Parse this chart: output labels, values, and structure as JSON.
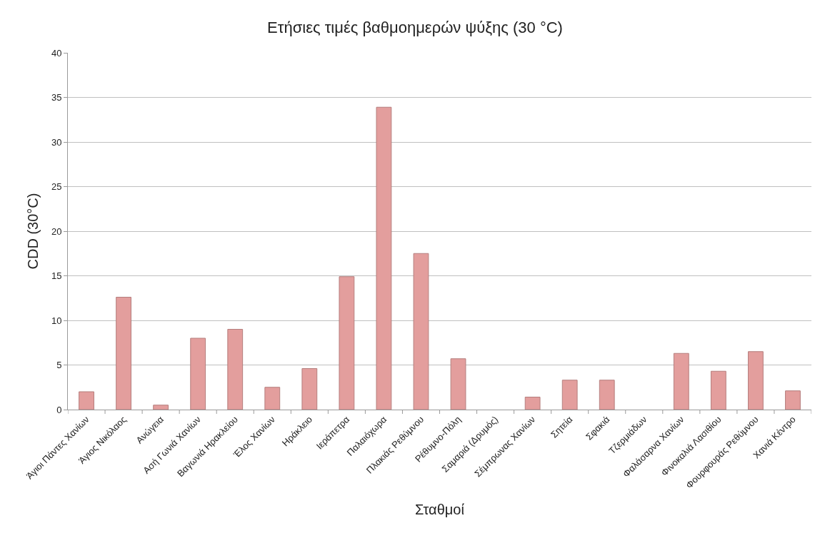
{
  "chart_data": {
    "type": "bar",
    "title": "Ετήσιες τιμές βαθμοημερών ψύξης (30 °C)",
    "xlabel": "Σταθμοί",
    "ylabel": "CDD (30°C)",
    "categories": [
      "Άγιοι Πάντες Χανίων",
      "Άγιος Νικόλαος",
      "Ανώγεια",
      "Ασή Γωνιά Χανίων",
      "Βαγωνιά Ηρακλείου",
      "Έλος Χανίων",
      "Ηράκλειο",
      "Ιεράπετρα",
      "Παλαιόχωρα",
      "Πλακιάς Ρεθύμνου",
      "Ρέθυμνο-Πόλη",
      "Σαμαριά (Δρυμός)",
      "Σέμπρωνας Χανίων",
      "Σητεία",
      "Σφακιά",
      "Τζερμιάδων",
      "Φαλάσαρνα Χανίων",
      "Φινοκαλιά Λασιθίου",
      "Φουρφουράς Ρεθύμνου",
      "Χανιά Κέντρο"
    ],
    "values": [
      2.0,
      12.6,
      0.5,
      8.0,
      9.0,
      2.5,
      4.6,
      14.9,
      33.9,
      17.5,
      5.7,
      null,
      1.4,
      3.3,
      3.3,
      null,
      6.3,
      4.3,
      6.5,
      2.1
    ],
    "color": "#e39e9d",
    "ylim": [
      0,
      40
    ],
    "yticks": [
      0,
      5,
      10,
      15,
      20,
      25,
      30,
      35,
      40
    ],
    "grid": "y"
  }
}
